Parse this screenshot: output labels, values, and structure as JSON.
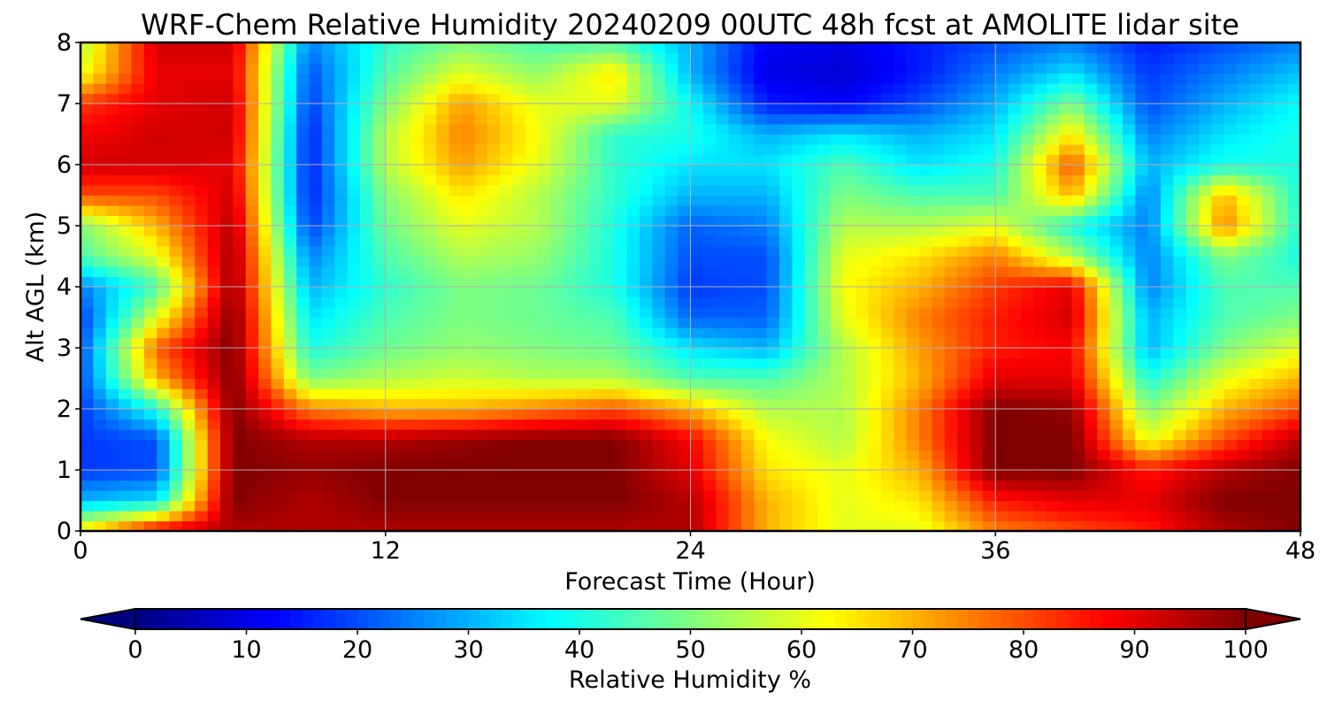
{
  "chart_data": {
    "type": "heatmap",
    "title": "WRF-Chem Relative Humidity 20240209 00UTC 48h fcst at AMOLITE lidar site",
    "xlabel": "Forecast Time (Hour)",
    "ylabel": "Alt AGL (km)",
    "xlim": [
      0,
      48
    ],
    "ylim": [
      0,
      8
    ],
    "xticks": [
      0,
      12,
      24,
      36,
      48
    ],
    "yticks": [
      0,
      1,
      2,
      3,
      4,
      5,
      6,
      7,
      8
    ],
    "grid": true,
    "colorbar": {
      "label": "Relative Humidity %",
      "range": [
        0,
        100
      ],
      "ticks": [
        0,
        10,
        20,
        30,
        40,
        50,
        60,
        70,
        80,
        90,
        100
      ],
      "orientation": "horizontal",
      "placement": "bottom",
      "extend": "both",
      "colormap": "jet"
    },
    "x": [
      0,
      3,
      6,
      9,
      12,
      15,
      18,
      21,
      24,
      27,
      30,
      33,
      36,
      39,
      42,
      45,
      48
    ],
    "y": [
      0,
      0.5,
      1,
      1.5,
      2,
      2.5,
      3,
      3.5,
      4,
      4.5,
      5,
      5.5,
      6,
      6.5,
      7,
      7.5,
      8
    ],
    "z": [
      [
        65,
        90,
        95,
        95,
        95,
        95,
        95,
        95,
        95,
        70,
        60,
        60,
        75,
        80,
        85,
        95,
        100
      ],
      [
        30,
        35,
        100,
        95,
        100,
        100,
        100,
        100,
        95,
        70,
        60,
        65,
        85,
        90,
        90,
        100,
        100
      ],
      [
        18,
        20,
        100,
        98,
        100,
        100,
        100,
        100,
        90,
        65,
        60,
        70,
        100,
        100,
        85,
        95,
        100
      ],
      [
        18,
        20,
        100,
        95,
        95,
        98,
        100,
        100,
        88,
        62,
        55,
        75,
        100,
        100,
        60,
        80,
        95
      ],
      [
        18,
        40,
        100,
        75,
        70,
        70,
        75,
        80,
        70,
        55,
        55,
        75,
        100,
        98,
        50,
        70,
        80
      ],
      [
        20,
        70,
        100,
        50,
        55,
        58,
        55,
        55,
        45,
        45,
        55,
        70,
        90,
        90,
        40,
        60,
        70
      ],
      [
        20,
        78,
        100,
        40,
        48,
        52,
        50,
        48,
        35,
        30,
        55,
        72,
        85,
        88,
        30,
        50,
        60
      ],
      [
        18,
        60,
        100,
        35,
        45,
        50,
        48,
        45,
        22,
        22,
        60,
        75,
        85,
        92,
        30,
        45,
        50
      ],
      [
        25,
        45,
        98,
        30,
        42,
        50,
        48,
        40,
        18,
        20,
        62,
        70,
        82,
        90,
        25,
        45,
        45
      ],
      [
        45,
        60,
        97,
        25,
        45,
        55,
        52,
        40,
        20,
        20,
        60,
        65,
        75,
        55,
        25,
        50,
        40
      ],
      [
        50,
        70,
        95,
        18,
        48,
        60,
        55,
        40,
        22,
        25,
        55,
        55,
        60,
        40,
        25,
        75,
        40
      ],
      [
        80,
        80,
        92,
        15,
        50,
        65,
        55,
        42,
        30,
        30,
        50,
        45,
        45,
        70,
        25,
        70,
        40
      ],
      [
        92,
        92,
        90,
        15,
        55,
        72,
        60,
        42,
        35,
        35,
        45,
        35,
        40,
        80,
        30,
        40,
        40
      ],
      [
        88,
        92,
        92,
        15,
        55,
        75,
        62,
        42,
        40,
        30,
        35,
        30,
        35,
        65,
        25,
        35,
        40
      ],
      [
        82,
        90,
        92,
        18,
        50,
        72,
        60,
        60,
        38,
        15,
        12,
        20,
        30,
        50,
        20,
        30,
        38
      ],
      [
        60,
        90,
        90,
        20,
        45,
        60,
        52,
        65,
        30,
        10,
        8,
        15,
        25,
        35,
        18,
        25,
        32
      ],
      [
        55,
        92,
        92,
        25,
        42,
        50,
        45,
        45,
        30,
        12,
        10,
        15,
        20,
        25,
        15,
        20,
        25
      ]
    ]
  }
}
